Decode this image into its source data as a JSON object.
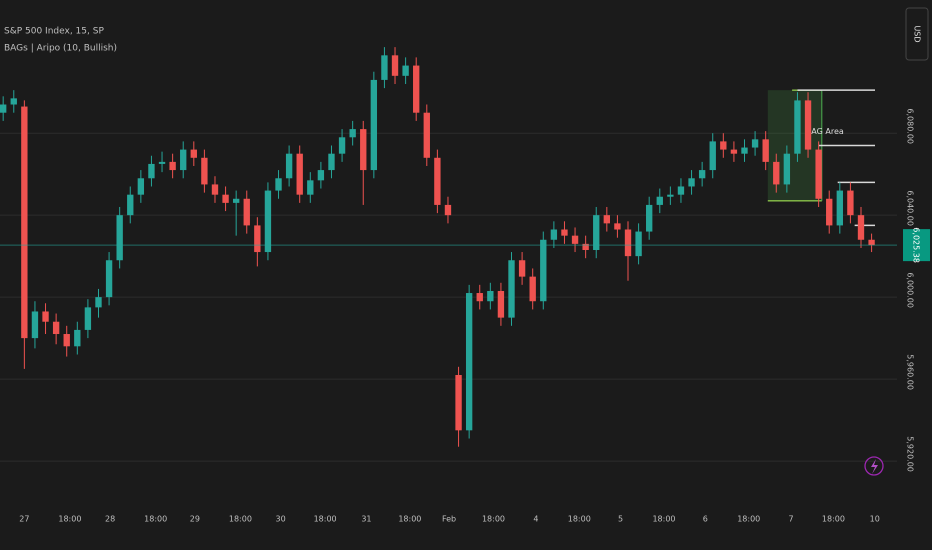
{
  "chart_data": {
    "type": "candlestick",
    "title": "S&P 500 Index, 15, SP",
    "subtitle": "BAGs | Aripo (10, Bullish)",
    "currency": "USD",
    "up_color": "#26a69a",
    "down_color": "#ef5350",
    "grid": true,
    "open": [
      6090,
      6094,
      6093,
      5980,
      5993,
      5988,
      5982,
      5976,
      5984,
      5995,
      6000,
      6018,
      6040,
      6050,
      6058,
      6065,
      6066,
      6062,
      6072,
      6068,
      6055,
      6050,
      6046,
      6048,
      6035,
      6022,
      6052,
      6058,
      6070,
      6050,
      6057,
      6062,
      6070,
      6078,
      6082,
      6062,
      6106,
      6118,
      6108,
      6113,
      6090,
      6068,
      6045,
      5962,
      5935,
      6002,
      5998,
      6003,
      5990,
      6018,
      6010,
      5998,
      6028,
      6033,
      6030,
      6026,
      6023,
      6040,
      6036,
      6033,
      6020,
      6032,
      6045,
      6049,
      6050,
      6054,
      6058,
      6062,
      6076,
      6072,
      6070,
      6073,
      6077,
      6066,
      6055,
      6070,
      6096,
      6072,
      6048,
      6035,
      6052,
      6040,
      6028
    ],
    "high": [
      6098,
      6101,
      6096,
      5998,
      5997,
      5992,
      5986,
      5988,
      5999,
      6004,
      6022,
      6044,
      6054,
      6062,
      6069,
      6071,
      6070,
      6076,
      6076,
      6072,
      6059,
      6054,
      6052,
      6052,
      6039,
      6056,
      6062,
      6074,
      6074,
      6061,
      6066,
      6074,
      6082,
      6086,
      6086,
      6110,
      6122,
      6122,
      6117,
      6117,
      6094,
      6072,
      6049,
      5966,
      6006,
      6006,
      6007,
      6007,
      6022,
      6022,
      6014,
      6032,
      6037,
      6037,
      6034,
      6030,
      6044,
      6044,
      6040,
      6037,
      6036,
      6049,
      6053,
      6054,
      6058,
      6062,
      6066,
      6080,
      6080,
      6076,
      6077,
      6081,
      6081,
      6070,
      6074,
      6100,
      6100,
      6076,
      6052,
      6056,
      6056,
      6044,
      6031
    ],
    "low": [
      6086,
      6090,
      5965,
      5975,
      5982,
      5977,
      5971,
      5972,
      5980,
      5990,
      5996,
      6014,
      6036,
      6046,
      6054,
      6061,
      6058,
      6058,
      6064,
      6051,
      6046,
      6042,
      6030,
      6031,
      6015,
      6018,
      6048,
      6054,
      6046,
      6046,
      6053,
      6058,
      6066,
      6074,
      6045,
      6058,
      6102,
      6104,
      6104,
      6086,
      6064,
      6041,
      6036,
      5927,
      5931,
      5994,
      5994,
      5986,
      5986,
      6006,
      5994,
      5994,
      6024,
      6026,
      6022,
      6019,
      6019,
      6032,
      6029,
      6008,
      6016,
      6028,
      6041,
      6045,
      6046,
      6050,
      6054,
      6058,
      6068,
      6066,
      6066,
      6069,
      6062,
      6051,
      6051,
      6066,
      6068,
      6044,
      6031,
      6031,
      6036,
      6024,
      6022
    ],
    "close": [
      6094,
      6097,
      5980,
      5993,
      5988,
      5982,
      5976,
      5984,
      5995,
      6000,
      6018,
      6040,
      6050,
      6058,
      6065,
      6066,
      6062,
      6072,
      6068,
      6055,
      6050,
      6046,
      6048,
      6035,
      6022,
      6052,
      6058,
      6070,
      6050,
      6057,
      6062,
      6070,
      6078,
      6082,
      6062,
      6106,
      6118,
      6108,
      6113,
      6090,
      6068,
      6045,
      6040,
      5935,
      6002,
      5998,
      6003,
      5990,
      6018,
      6010,
      5998,
      6028,
      6033,
      6030,
      6026,
      6023,
      6040,
      6036,
      6033,
      6020,
      6032,
      6045,
      6049,
      6050,
      6054,
      6058,
      6062,
      6076,
      6072,
      6070,
      6073,
      6077,
      6066,
      6055,
      6070,
      6096,
      6072,
      6048,
      6035,
      6052,
      6040,
      6028,
      6025.38
    ],
    "last_price": {
      "value": 6025.38,
      "label": "6,025.38"
    },
    "bag_area": {
      "label": "BAG Area",
      "top": 6101,
      "bottom": 6047,
      "start": 72.2,
      "end": 77.3
    },
    "levels": [
      {
        "price": 6101,
        "start": 75
      },
      {
        "price": 6074,
        "start": 77
      },
      {
        "price": 6056,
        "start": 78.8
      },
      {
        "price": 6035,
        "start": 80.4
      }
    ],
    "xlim": [
      -0.3,
      84.4
    ],
    "ylim": [
      5901,
      6145
    ],
    "yticks": [
      {
        "value": 6080,
        "label": "6,080.00"
      },
      {
        "value": 6040,
        "label": "6,040.00"
      },
      {
        "value": 6000,
        "label": "6,000.00"
      },
      {
        "value": 5960,
        "label": "5,960.00"
      },
      {
        "value": 5920,
        "label": "5,920.00"
      }
    ],
    "xticks": [
      {
        "value": 2.0,
        "label": "27"
      },
      {
        "value": 6.3,
        "label": "18:00"
      },
      {
        "value": 10.1,
        "label": "28"
      },
      {
        "value": 14.4,
        "label": "18:00"
      },
      {
        "value": 18.1,
        "label": "29"
      },
      {
        "value": 22.4,
        "label": "18:00"
      },
      {
        "value": 26.2,
        "label": "30"
      },
      {
        "value": 30.4,
        "label": "18:00"
      },
      {
        "value": 34.3,
        "label": "31"
      },
      {
        "value": 38.4,
        "label": "18:00"
      },
      {
        "value": 42.1,
        "label": "Feb"
      },
      {
        "value": 46.3,
        "label": "18:00"
      },
      {
        "value": 50.3,
        "label": "4"
      },
      {
        "value": 54.4,
        "label": "18:00"
      },
      {
        "value": 58.3,
        "label": "5"
      },
      {
        "value": 62.4,
        "label": "18:00"
      },
      {
        "value": 66.3,
        "label": "6"
      },
      {
        "value": 70.4,
        "label": "18:00"
      },
      {
        "value": 74.4,
        "label": "7"
      },
      {
        "value": 78.4,
        "label": "18:00"
      },
      {
        "value": 82.3,
        "label": "10"
      }
    ]
  }
}
